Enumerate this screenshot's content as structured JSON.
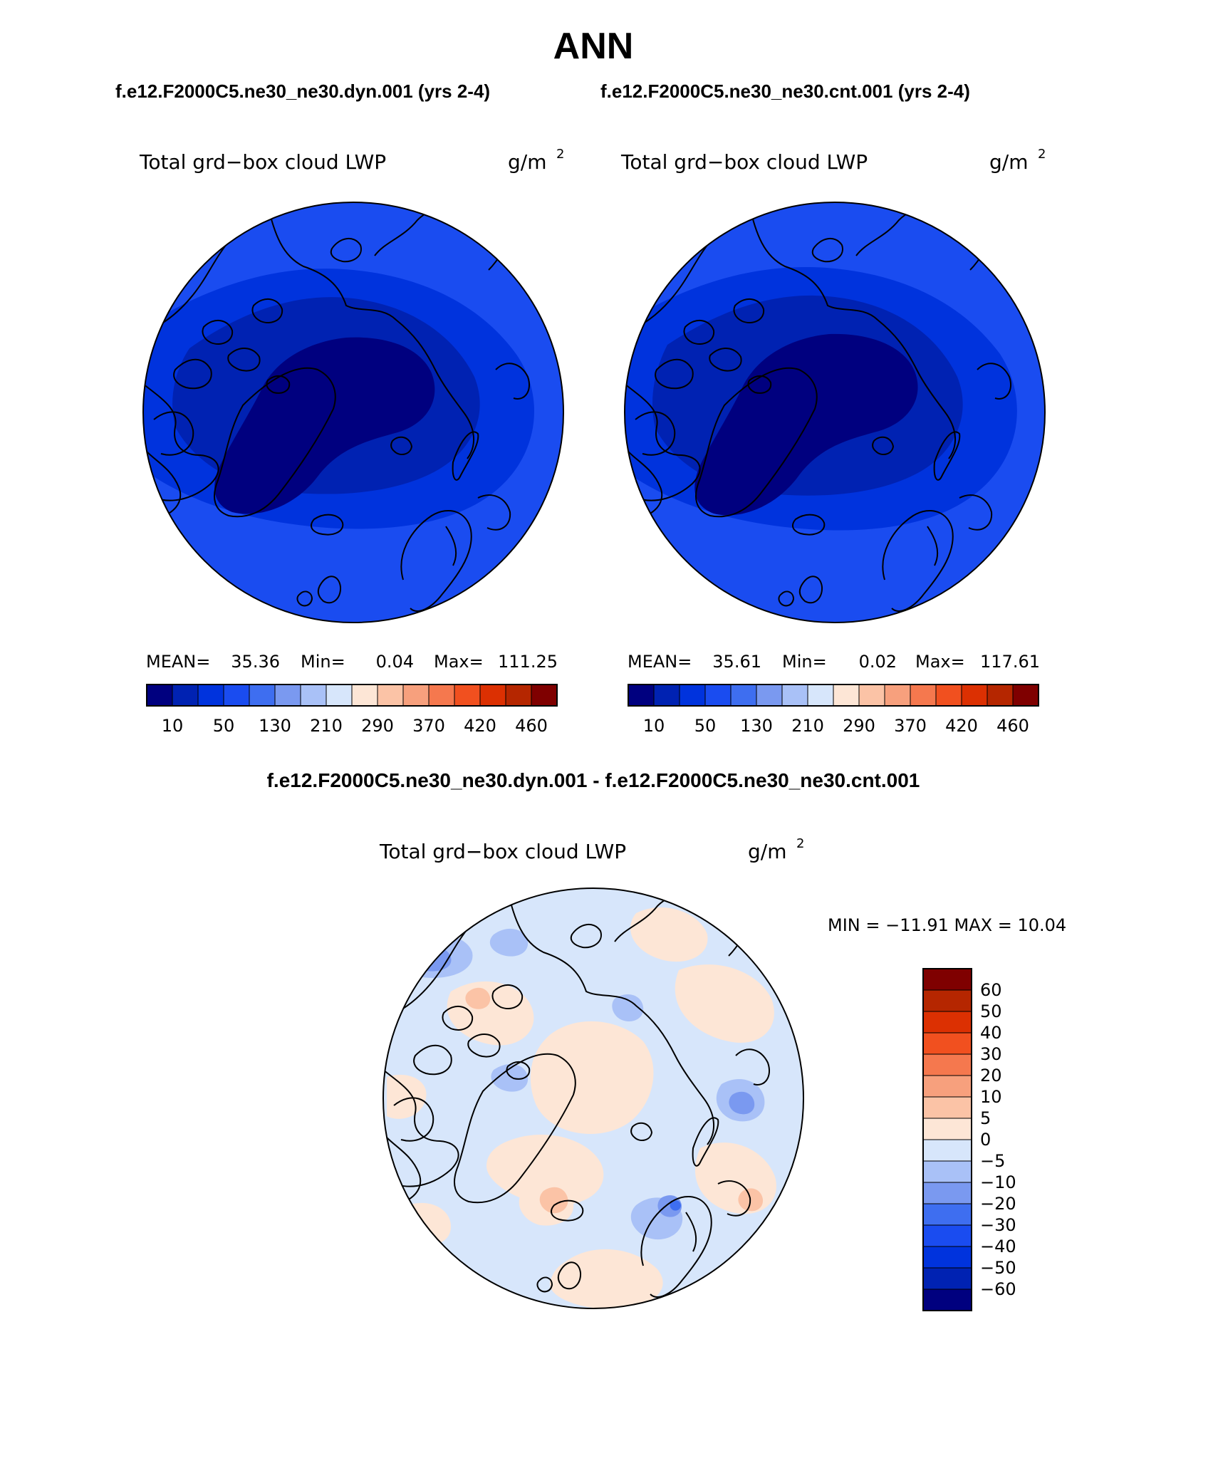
{
  "title": "ANN",
  "case_header": {
    "left": "f.e12.F2000C5.ne30_ne30.dyn.001 (yrs 2-4)",
    "right": "f.e12.F2000C5.ne30_ne30.cnt.001 (yrs 2-4)"
  },
  "panels": [
    {
      "variable": "Total grd−box cloud LWP",
      "units_base": "g/m",
      "units_exp": "2",
      "stats": {
        "mean_label": "MEAN=",
        "mean": "35.36",
        "min_label": "Min=",
        "min": "0.04",
        "max_label": "Max=",
        "max": "111.25"
      }
    },
    {
      "variable": "Total grd−box cloud LWP",
      "units_base": "g/m",
      "units_exp": "2",
      "stats": {
        "mean_label": "MEAN=",
        "mean": "35.61",
        "min_label": "Min=",
        "min": "0.02",
        "max_label": "Max=",
        "max": "117.61"
      }
    }
  ],
  "field_colorbar": {
    "colors": [
      "#00007f",
      "#0022b2",
      "#0033dd",
      "#1a4cf0",
      "#3e6ef0",
      "#7a99f0",
      "#a9c1f7",
      "#d7e6fb",
      "#fde6d6",
      "#fbc3a6",
      "#f7a07d",
      "#f5784e",
      "#f1501f",
      "#dc3002",
      "#b52600",
      "#7f0000"
    ],
    "labels": [
      "10",
      "50",
      "130",
      "210",
      "290",
      "370",
      "420",
      "460"
    ]
  },
  "difference": {
    "header": "f.e12.F2000C5.ne30_ne30.dyn.001 - f.e12.F2000C5.ne30_ne30.cnt.001",
    "variable": "Total grd−box cloud LWP",
    "units_base": "g/m",
    "units_exp": "2",
    "minmax": "MIN = −11.91 MAX =   10.04",
    "colorbar": {
      "colors_top_to_bottom": [
        "#7f0000",
        "#b52600",
        "#dc3002",
        "#f1501f",
        "#f5784e",
        "#f7a07d",
        "#fbc3a6",
        "#fde6d6",
        "#d7e6fb",
        "#a9c1f7",
        "#7a99f0",
        "#3e6ef0",
        "#1a4cf0",
        "#0033dd",
        "#0022b2",
        "#00007f"
      ],
      "labels_top_to_bottom": [
        "60",
        "50",
        "40",
        "30",
        "20",
        "10",
        "5",
        "0",
        "−5",
        "−10",
        "−20",
        "−30",
        "−40",
        "−50",
        "−60"
      ]
    }
  },
  "map_colors": {
    "field_base": "#1a4cf0",
    "field_mid": "#0033dd",
    "field_low": "#0022b2",
    "field_lowest": "#00007f",
    "diff_base": "#d7e6fb",
    "diff_pos": "#fde6d6",
    "diff_pos2": "#fbc3a6",
    "diff_neg": "#a9c1f7",
    "diff_neg2": "#7a99f0",
    "diff_neg3": "#3e6ef0"
  }
}
